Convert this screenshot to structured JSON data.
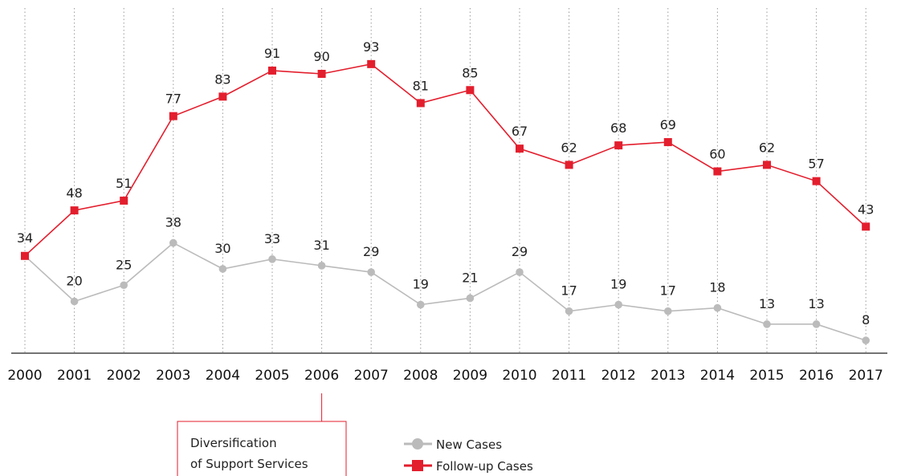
{
  "chart_data": {
    "type": "line",
    "title": "",
    "xlabel": "",
    "ylabel": "",
    "ylim": [
      0,
      100
    ],
    "grid": "vertical dotted",
    "legend_position": "bottom",
    "categories": [
      "2000",
      "2001",
      "2002",
      "2003",
      "2004",
      "2005",
      "2006",
      "2007",
      "2008",
      "2009",
      "2010",
      "2011",
      "2012",
      "2013",
      "2014",
      "2015",
      "2016",
      "2017"
    ],
    "series": [
      {
        "name": "New Cases",
        "color": "#bbbbbb",
        "marker": "circle",
        "values": [
          34,
          20,
          25,
          38,
          30,
          33,
          31,
          29,
          19,
          21,
          29,
          17,
          19,
          17,
          18,
          13,
          13,
          8
        ]
      },
      {
        "name": "Follow-up Cases",
        "color": "#e31e2d",
        "marker": "square",
        "values": [
          34,
          48,
          51,
          77,
          83,
          91,
          90,
          93,
          81,
          85,
          67,
          62,
          68,
          69,
          60,
          62,
          57,
          43
        ]
      }
    ],
    "annotations": [
      {
        "year": "2006",
        "lines": [
          "Diversification",
          "of Support Services"
        ],
        "color": "#e31e2d"
      }
    ]
  }
}
